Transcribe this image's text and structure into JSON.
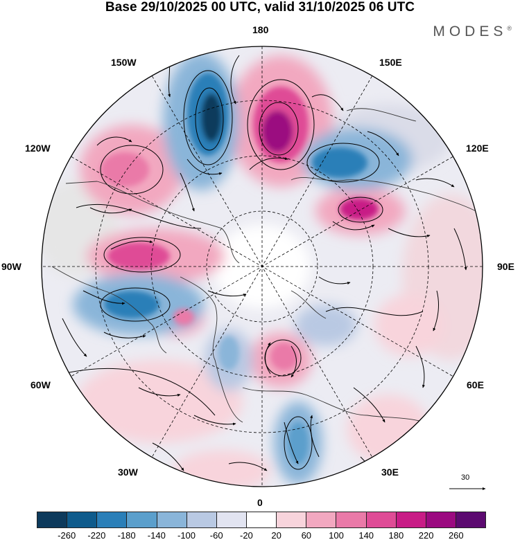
{
  "title": "Base 29/10/2025 00 UTC, valid 31/10/2025 06 UTC",
  "brand": "MODES",
  "brand_mark": "®",
  "longitude_labels": {
    "n180": "180",
    "w150": "150W",
    "e150": "150E",
    "w120": "120W",
    "e120": "120E",
    "w90": "90W",
    "e90": "90E",
    "w60": "60W",
    "e60": "60E",
    "w30": "30W",
    "e30": "30E",
    "zero": "0"
  },
  "wind_scale_label": "30",
  "colorbar": {
    "colors": [
      "#0d3a5c",
      "#0f5b8c",
      "#2b7fb8",
      "#5b9fcc",
      "#8ab5d9",
      "#b9c9e3",
      "#e2e4f1",
      "#ffffff",
      "#f8d4dc",
      "#f2a8c0",
      "#ea7aa8",
      "#df4c96",
      "#c81c86",
      "#9b0a80",
      "#5c0a70"
    ],
    "ticks": [
      "-260",
      "-220",
      "-180",
      "-140",
      "-100",
      "-60",
      "-20",
      "20",
      "60",
      "100",
      "140",
      "180",
      "220",
      "260"
    ]
  }
}
